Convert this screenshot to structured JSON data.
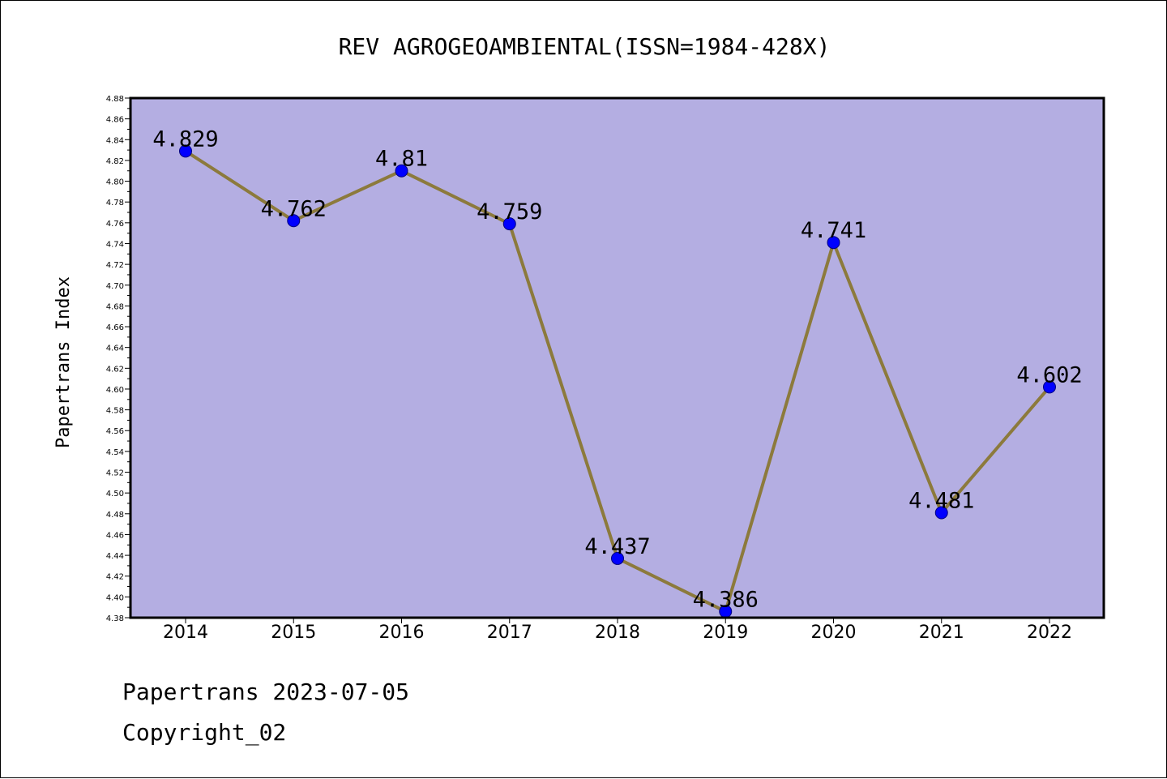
{
  "chart_data": {
    "type": "line",
    "title": "REV AGROGEOAMBIENTAL(ISSN=1984-428X)",
    "ylabel": "Papertrans Index",
    "xlabel": "",
    "categories": [
      "2014",
      "2015",
      "2016",
      "2017",
      "2018",
      "2019",
      "2020",
      "2021",
      "2022"
    ],
    "series": [
      {
        "values": [
          4.829,
          4.762,
          4.81,
          4.759,
          4.437,
          4.386,
          4.741,
          4.481,
          4.602
        ],
        "labels": [
          "4.829",
          "4.762",
          "4.81",
          "4.759",
          "4.437",
          "4.386",
          "4.741",
          "4.481",
          "4.602"
        ]
      }
    ],
    "ylim": [
      4.38,
      4.88
    ],
    "ytick_step": 0.02,
    "grid": false,
    "legend": "none",
    "colors": {
      "plot_background": "#b4aee2",
      "line": "#8c7a3c",
      "marker": "#0000ff",
      "axes": "#000000"
    }
  },
  "footer": {
    "date_text": "Papertrans 2023-07-05",
    "copyright_text": "Copyright_02"
  }
}
